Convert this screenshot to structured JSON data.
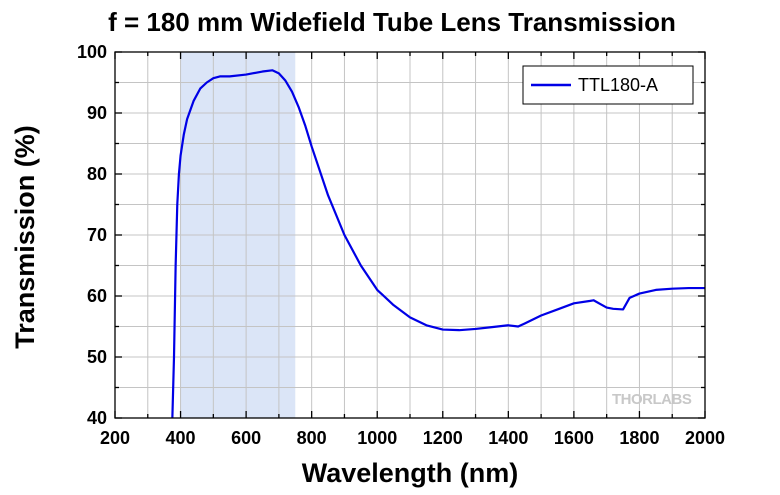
{
  "chart_data": {
    "type": "line",
    "title": "f = 180 mm Widefield Tube Lens Transmission",
    "xlabel": "Wavelength (nm)",
    "ylabel": "Transmission (%)",
    "xlim": [
      200,
      2000
    ],
    "ylim": [
      40,
      100
    ],
    "xticks": [
      200,
      400,
      600,
      800,
      1000,
      1200,
      1400,
      1600,
      1800,
      2000
    ],
    "yticks": [
      40,
      50,
      60,
      70,
      80,
      90,
      100
    ],
    "grid": true,
    "legend_position": "top-right",
    "highlight_band": {
      "x0": 400,
      "x1": 750,
      "color": "#dbe5f7"
    },
    "series": [
      {
        "name": "TTL180-A",
        "color": "#0000e6",
        "x": [
          375,
          380,
          385,
          390,
          395,
          400,
          410,
          420,
          440,
          460,
          480,
          500,
          520,
          550,
          600,
          650,
          680,
          700,
          720,
          740,
          760,
          780,
          800,
          850,
          900,
          950,
          1000,
          1050,
          1100,
          1150,
          1200,
          1250,
          1300,
          1350,
          1400,
          1430,
          1450,
          1500,
          1550,
          1600,
          1650,
          1660,
          1680,
          1700,
          1720,
          1750,
          1770,
          1800,
          1850,
          1900,
          1950,
          2000
        ],
        "y": [
          40,
          50,
          65,
          75,
          80,
          83,
          86.5,
          89,
          92,
          94,
          95,
          95.7,
          96,
          96,
          96.3,
          96.8,
          97,
          96.5,
          95.3,
          93.5,
          91,
          88,
          84.5,
          76.5,
          70,
          65,
          61,
          58.5,
          56.5,
          55.2,
          54.5,
          54.4,
          54.6,
          54.9,
          55.2,
          55,
          55.5,
          56.8,
          57.8,
          58.8,
          59.2,
          59.3,
          58.7,
          58.1,
          57.9,
          57.8,
          59.7,
          60.4,
          61,
          61.2,
          61.3,
          61.3
        ]
      }
    ],
    "watermark": "THORLABS"
  }
}
